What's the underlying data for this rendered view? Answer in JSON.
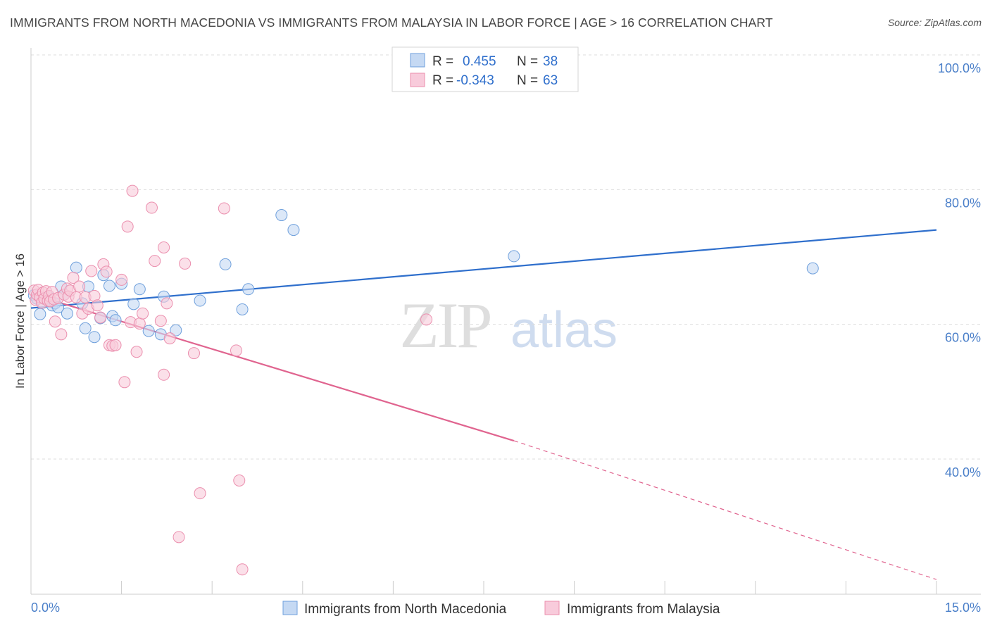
{
  "chart_data": {
    "type": "scatter",
    "title": "IMMIGRANTS FROM NORTH MACEDONIA VS IMMIGRANTS FROM MALAYSIA IN LABOR FORCE | AGE > 16 CORRELATION CHART",
    "source": "Source: ZipAtlas.com",
    "xlabel": "",
    "ylabel": "In Labor Force | Age > 16",
    "xlim": [
      0,
      15
    ],
    "ylim": [
      21.0,
      102.0
    ],
    "x_tick_labels": {
      "left": "0.0%",
      "right": "15.0%"
    },
    "y_ticks": [
      {
        "value": 100,
        "label": "100.0%"
      },
      {
        "value": 80,
        "label": "80.0%"
      },
      {
        "value": 60,
        "label": "60.0%"
      },
      {
        "value": 40,
        "label": "40.0%"
      }
    ],
    "watermark": {
      "zip": "ZIP",
      "atlas": "atlas"
    },
    "legend": {
      "entries": [
        {
          "r_label": "R =",
          "r_value": "0.455",
          "n_label": "N =",
          "n_value": "38"
        },
        {
          "r_label": "R =",
          "r_value": "-0.343",
          "n_label": "N =",
          "n_value": "63"
        }
      ]
    },
    "series": [
      {
        "name": "Immigrants from North Macedonia",
        "color": "#6fa0dc",
        "fill": "#c5d9f3",
        "line_color": "#2f6fcc",
        "trend": {
          "x": [
            0.0,
            15.0
          ],
          "y": [
            64.4,
            76.0
          ]
        },
        "points": [
          {
            "x": 0.05,
            "y": 66.3
          },
          {
            "x": 0.1,
            "y": 65.8
          },
          {
            "x": 0.15,
            "y": 63.5
          },
          {
            "x": 0.2,
            "y": 65.2
          },
          {
            "x": 0.25,
            "y": 65.9
          },
          {
            "x": 0.3,
            "y": 66.0
          },
          {
            "x": 0.35,
            "y": 64.8
          },
          {
            "x": 0.4,
            "y": 65.1
          },
          {
            "x": 0.45,
            "y": 64.5
          },
          {
            "x": 0.5,
            "y": 67.6
          },
          {
            "x": 0.55,
            "y": 66.4
          },
          {
            "x": 0.6,
            "y": 63.6
          },
          {
            "x": 0.75,
            "y": 70.4
          },
          {
            "x": 0.85,
            "y": 65.1
          },
          {
            "x": 0.9,
            "y": 61.4
          },
          {
            "x": 0.95,
            "y": 67.6
          },
          {
            "x": 1.05,
            "y": 60.1
          },
          {
            "x": 1.15,
            "y": 62.9
          },
          {
            "x": 1.2,
            "y": 69.3
          },
          {
            "x": 1.3,
            "y": 67.7
          },
          {
            "x": 1.35,
            "y": 63.2
          },
          {
            "x": 1.4,
            "y": 62.6
          },
          {
            "x": 1.5,
            "y": 68.0
          },
          {
            "x": 1.7,
            "y": 65.0
          },
          {
            "x": 1.8,
            "y": 67.2
          },
          {
            "x": 1.95,
            "y": 61.0
          },
          {
            "x": 2.15,
            "y": 60.5
          },
          {
            "x": 2.2,
            "y": 66.1
          },
          {
            "x": 2.4,
            "y": 61.1
          },
          {
            "x": 2.8,
            "y": 65.5
          },
          {
            "x": 3.22,
            "y": 70.9
          },
          {
            "x": 3.5,
            "y": 64.2
          },
          {
            "x": 3.6,
            "y": 67.2
          },
          {
            "x": 4.15,
            "y": 78.2
          },
          {
            "x": 4.35,
            "y": 76.0
          },
          {
            "x": 8.0,
            "y": 72.1
          },
          {
            "x": 12.95,
            "y": 70.3
          }
        ]
      },
      {
        "name": "Immigrants from Malaysia",
        "color": "#eb8fae",
        "fill": "#f8cbdb",
        "line_color": "#e0648f",
        "trend": {
          "x": [
            0.0,
            8.0
          ],
          "y": [
            66.5,
            44.7
          ]
        },
        "trend_dashed": {
          "x": [
            8.0,
            15.0
          ],
          "y": [
            44.7,
            24.1
          ]
        },
        "points": [
          {
            "x": 0.05,
            "y": 67.0
          },
          {
            "x": 0.08,
            "y": 65.6
          },
          {
            "x": 0.1,
            "y": 66.4
          },
          {
            "x": 0.12,
            "y": 67.1
          },
          {
            "x": 0.15,
            "y": 66.0
          },
          {
            "x": 0.18,
            "y": 65.2
          },
          {
            "x": 0.2,
            "y": 66.7
          },
          {
            "x": 0.22,
            "y": 65.8
          },
          {
            "x": 0.25,
            "y": 66.9
          },
          {
            "x": 0.28,
            "y": 65.5
          },
          {
            "x": 0.3,
            "y": 66.2
          },
          {
            "x": 0.32,
            "y": 65.4
          },
          {
            "x": 0.35,
            "y": 66.8
          },
          {
            "x": 0.38,
            "y": 65.7
          },
          {
            "x": 0.4,
            "y": 62.4
          },
          {
            "x": 0.45,
            "y": 65.9
          },
          {
            "x": 0.5,
            "y": 60.5
          },
          {
            "x": 0.55,
            "y": 66.4
          },
          {
            "x": 0.6,
            "y": 67.3
          },
          {
            "x": 0.62,
            "y": 66.1
          },
          {
            "x": 0.65,
            "y": 67.0
          },
          {
            "x": 0.7,
            "y": 68.9
          },
          {
            "x": 0.75,
            "y": 66.0
          },
          {
            "x": 0.8,
            "y": 67.6
          },
          {
            "x": 0.85,
            "y": 63.6
          },
          {
            "x": 0.9,
            "y": 66.0
          },
          {
            "x": 0.95,
            "y": 64.3
          },
          {
            "x": 1.0,
            "y": 69.9
          },
          {
            "x": 1.05,
            "y": 66.2
          },
          {
            "x": 1.1,
            "y": 64.8
          },
          {
            "x": 1.15,
            "y": 63.0
          },
          {
            "x": 1.2,
            "y": 70.9
          },
          {
            "x": 1.25,
            "y": 69.8
          },
          {
            "x": 1.3,
            "y": 58.9
          },
          {
            "x": 1.35,
            "y": 58.8
          },
          {
            "x": 1.4,
            "y": 58.9
          },
          {
            "x": 1.5,
            "y": 68.6
          },
          {
            "x": 1.55,
            "y": 53.4
          },
          {
            "x": 1.6,
            "y": 76.5
          },
          {
            "x": 1.65,
            "y": 62.3
          },
          {
            "x": 1.68,
            "y": 81.8
          },
          {
            "x": 1.75,
            "y": 57.9
          },
          {
            "x": 1.8,
            "y": 62.1
          },
          {
            "x": 1.85,
            "y": 63.6
          },
          {
            "x": 2.0,
            "y": 79.3
          },
          {
            "x": 2.05,
            "y": 71.4
          },
          {
            "x": 2.15,
            "y": 62.5
          },
          {
            "x": 2.2,
            "y": 73.4
          },
          {
            "x": 2.25,
            "y": 65.1
          },
          {
            "x": 2.3,
            "y": 59.9
          },
          {
            "x": 2.55,
            "y": 71.0
          },
          {
            "x": 2.7,
            "y": 57.7
          },
          {
            "x": 2.8,
            "y": 36.9
          },
          {
            "x": 2.2,
            "y": 54.5
          },
          {
            "x": 2.45,
            "y": 30.4
          },
          {
            "x": 3.2,
            "y": 79.2
          },
          {
            "x": 3.4,
            "y": 58.1
          },
          {
            "x": 3.45,
            "y": 38.8
          },
          {
            "x": 3.5,
            "y": 25.6
          },
          {
            "x": 6.55,
            "y": 62.7
          }
        ]
      }
    ]
  }
}
